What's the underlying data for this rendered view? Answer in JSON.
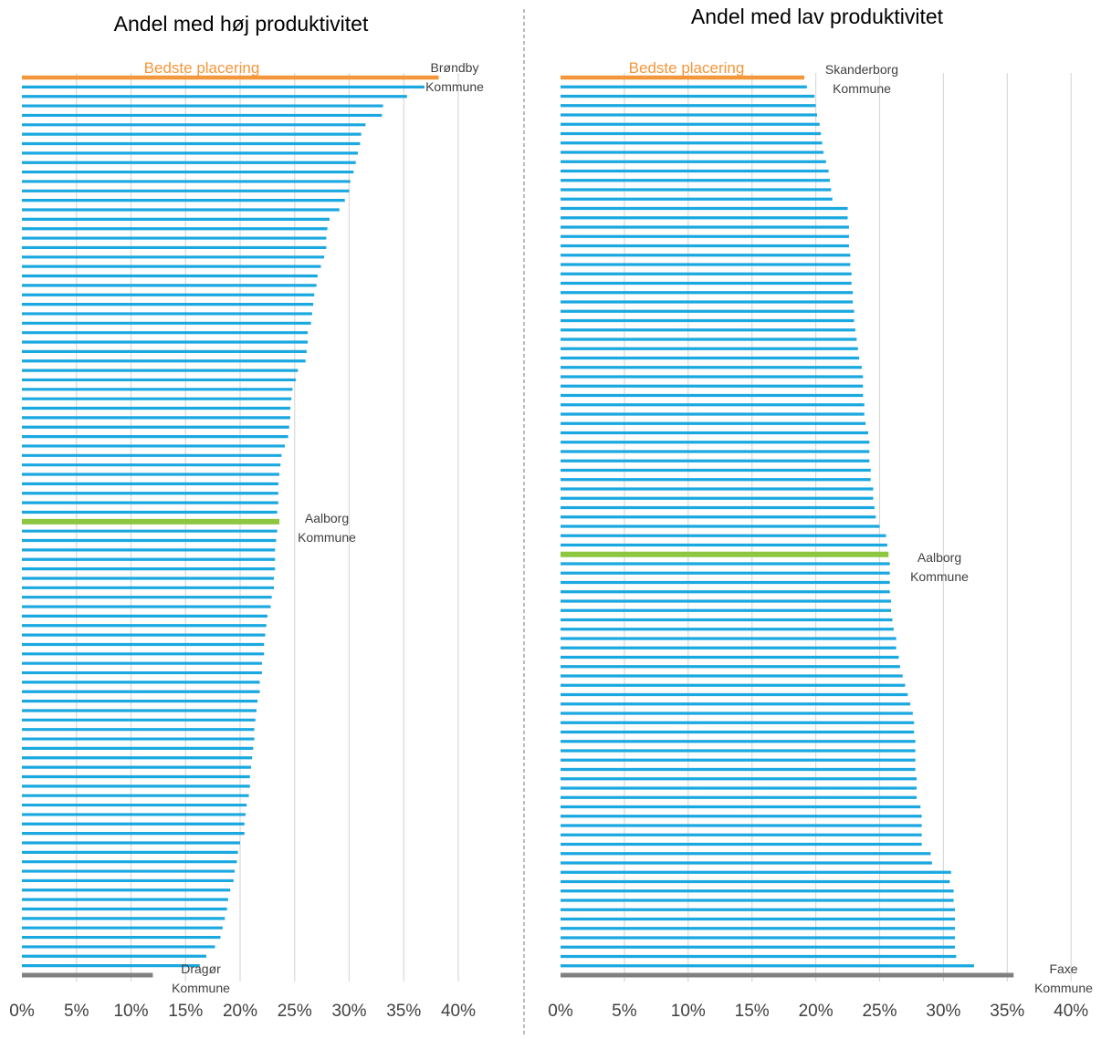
{
  "chart_data": [
    {
      "type": "bar",
      "orientation": "horizontal",
      "title": "Andel med høj produktivitet",
      "xlabel": "",
      "ylabel": "",
      "xlim": [
        0,
        0.4
      ],
      "x_tick_labels": [
        "0%",
        "5%",
        "10%",
        "15%",
        "20%",
        "25%",
        "30%",
        "35%",
        "40%"
      ],
      "grid": true,
      "reference_label": "Bedste placering",
      "annotations": [
        {
          "line1": "Brøndby",
          "line2": "Kommune",
          "target": "top"
        },
        {
          "line1": "Aalborg",
          "line2": "Kommune",
          "target": "highlight"
        },
        {
          "line1": "Dragør",
          "line2": "Kommune",
          "target": "bottom"
        }
      ],
      "colors": {
        "reference": "#F4963A",
        "bar": "#1AA8E0",
        "highlight": "#8DC63F",
        "bottom": "#808080",
        "grid": "#D9D9D9"
      },
      "reference_value": 0.382,
      "highlight_index": 47,
      "values": [
        0.382,
        0.369,
        0.353,
        0.331,
        0.33,
        0.315,
        0.311,
        0.31,
        0.308,
        0.306,
        0.304,
        0.301,
        0.3,
        0.296,
        0.291,
        0.282,
        0.28,
        0.279,
        0.279,
        0.277,
        0.274,
        0.271,
        0.27,
        0.268,
        0.267,
        0.266,
        0.265,
        0.262,
        0.262,
        0.261,
        0.26,
        0.253,
        0.251,
        0.248,
        0.247,
        0.246,
        0.246,
        0.245,
        0.244,
        0.241,
        0.238,
        0.237,
        0.236,
        0.235,
        0.235,
        0.235,
        0.234,
        0.236,
        0.234,
        0.233,
        0.232,
        0.232,
        0.232,
        0.231,
        0.231,
        0.229,
        0.228,
        0.225,
        0.224,
        0.223,
        0.222,
        0.222,
        0.22,
        0.22,
        0.218,
        0.218,
        0.216,
        0.215,
        0.214,
        0.213,
        0.213,
        0.212,
        0.211,
        0.21,
        0.209,
        0.209,
        0.208,
        0.206,
        0.205,
        0.204,
        0.204,
        0.2,
        0.198,
        0.197,
        0.195,
        0.194,
        0.191,
        0.189,
        0.188,
        0.186,
        0.184,
        0.182,
        0.177,
        0.169,
        0.163,
        0.12
      ]
    },
    {
      "type": "bar",
      "orientation": "horizontal",
      "title": "Andel med lav produktivitet",
      "xlabel": "",
      "ylabel": "",
      "xlim": [
        0,
        0.4
      ],
      "x_tick_labels": [
        "0%",
        "5%",
        "10%",
        "15%",
        "20%",
        "25%",
        "30%",
        "35%",
        "40%"
      ],
      "grid": true,
      "reference_label": "Bedste placering",
      "annotations": [
        {
          "line1": "Skanderborg",
          "line2": "Kommune",
          "target": "top"
        },
        {
          "line1": "Aalborg",
          "line2": "Kommune",
          "target": "highlight"
        },
        {
          "line1": "Faxe",
          "line2": "Kommune",
          "target": "bottom"
        }
      ],
      "colors": {
        "reference": "#F4963A",
        "bar": "#1AA8E0",
        "highlight": "#8DC63F",
        "bottom": "#808080",
        "grid": "#D9D9D9"
      },
      "reference_value": 0.191,
      "highlight_index": 51,
      "values": [
        0.191,
        0.193,
        0.199,
        0.2,
        0.201,
        0.203,
        0.204,
        0.205,
        0.206,
        0.208,
        0.21,
        0.211,
        0.212,
        0.213,
        0.225,
        0.225,
        0.226,
        0.226,
        0.226,
        0.227,
        0.227,
        0.228,
        0.228,
        0.229,
        0.229,
        0.23,
        0.23,
        0.231,
        0.232,
        0.233,
        0.234,
        0.236,
        0.237,
        0.237,
        0.237,
        0.238,
        0.238,
        0.239,
        0.241,
        0.242,
        0.242,
        0.242,
        0.243,
        0.243,
        0.245,
        0.245,
        0.246,
        0.247,
        0.25,
        0.255,
        0.256,
        0.257,
        0.258,
        0.258,
        0.258,
        0.258,
        0.259,
        0.259,
        0.26,
        0.261,
        0.263,
        0.263,
        0.265,
        0.266,
        0.268,
        0.27,
        0.272,
        0.274,
        0.276,
        0.277,
        0.277,
        0.278,
        0.278,
        0.278,
        0.278,
        0.279,
        0.279,
        0.279,
        0.282,
        0.283,
        0.283,
        0.283,
        0.283,
        0.29,
        0.291,
        0.306,
        0.305,
        0.308,
        0.308,
        0.309,
        0.309,
        0.309,
        0.309,
        0.309,
        0.31,
        0.324,
        0.355
      ]
    }
  ]
}
